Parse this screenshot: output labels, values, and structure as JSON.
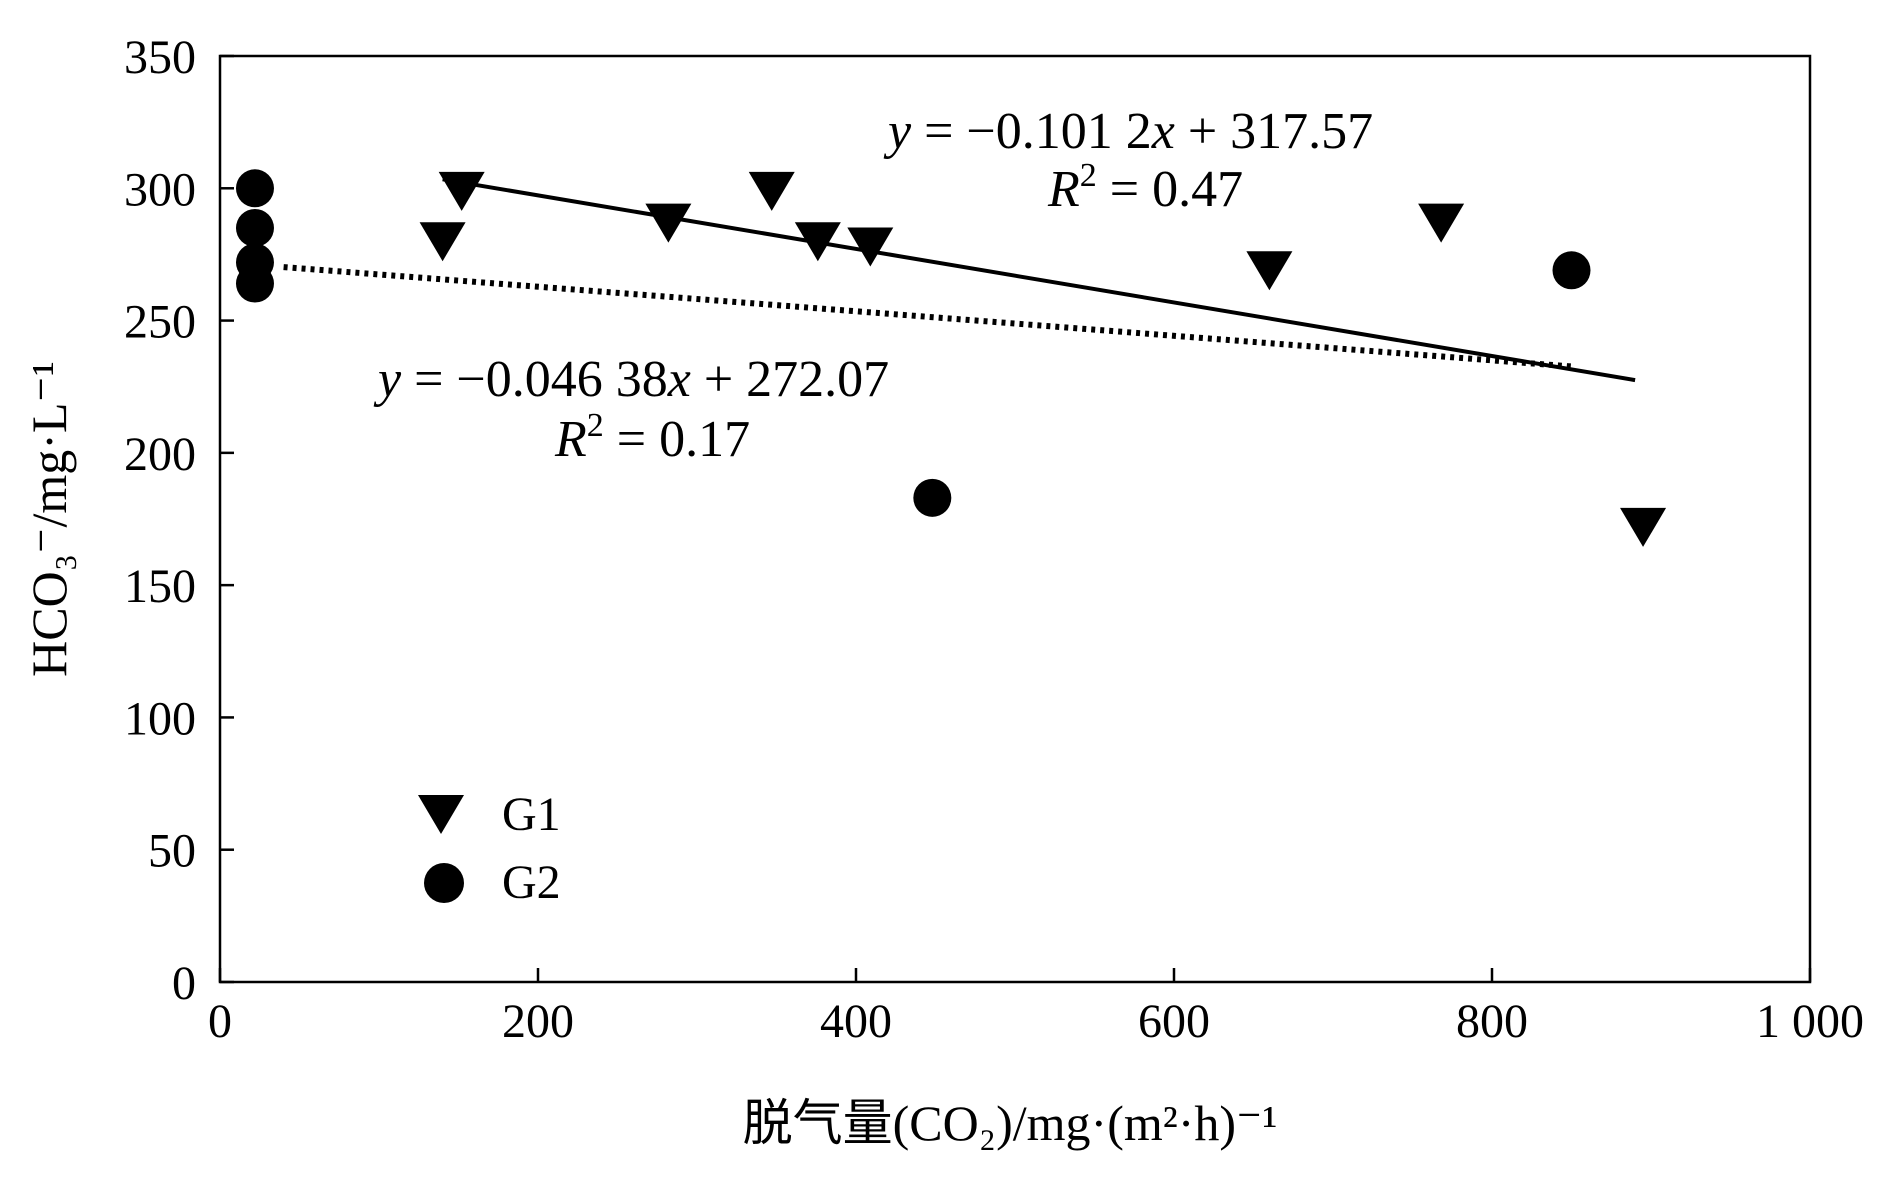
{
  "chart_data": {
    "type": "scatter",
    "title": "",
    "xlabel": "脱气量(CO₂)/mg·(m²·h)⁻¹",
    "ylabel": "HCO₃⁻/mg·L⁻¹",
    "xlim": [
      0,
      1000
    ],
    "ylim": [
      0,
      350
    ],
    "x_ticks": [
      "0",
      "200",
      "400",
      "600",
      "800",
      "1 000"
    ],
    "y_ticks": [
      "0",
      "50",
      "100",
      "150",
      "200",
      "250",
      "300",
      "350"
    ],
    "grid": false,
    "legend_position": "lower-left",
    "series": [
      {
        "name": "G1",
        "marker": "triangle-down",
        "points": [
          {
            "x": 140,
            "y": 280
          },
          {
            "x": 152,
            "y": 299
          },
          {
            "x": 282,
            "y": 287
          },
          {
            "x": 347,
            "y": 299
          },
          {
            "x": 376,
            "y": 280
          },
          {
            "x": 409,
            "y": 278
          },
          {
            "x": 660,
            "y": 269
          },
          {
            "x": 768,
            "y": 287
          },
          {
            "x": 895,
            "y": 172
          }
        ]
      },
      {
        "name": "G2",
        "marker": "circle",
        "points": [
          {
            "x": 22,
            "y": 300
          },
          {
            "x": 22,
            "y": 285
          },
          {
            "x": 22,
            "y": 272
          },
          {
            "x": 22,
            "y": 264
          },
          {
            "x": 448,
            "y": 183
          },
          {
            "x": 850,
            "y": 269
          }
        ]
      }
    ],
    "trendlines": [
      {
        "series": "G1",
        "style": "solid",
        "slope": -0.1012,
        "intercept": 317.57,
        "x_range": [
          140,
          890
        ],
        "equation": {
          "y": "y",
          "rhs": " = −0.101 2",
          "x": "x",
          "tail": " + 317.57"
        },
        "r2": {
          "r": "R",
          "sup": "2",
          "rest": " = 0.47"
        }
      },
      {
        "series": "G2",
        "style": "dotted",
        "slope": -0.04638,
        "intercept": 272.07,
        "x_range": [
          40,
          850
        ],
        "equation": {
          "y": "y",
          "rhs": " = −0.046 38",
          "x": "x",
          "tail": " + 272.07"
        },
        "r2": {
          "r": "R",
          "sup": "2",
          "rest": " = 0.17"
        }
      }
    ],
    "colors": {
      "ink": "#000000",
      "background": "#ffffff"
    }
  }
}
